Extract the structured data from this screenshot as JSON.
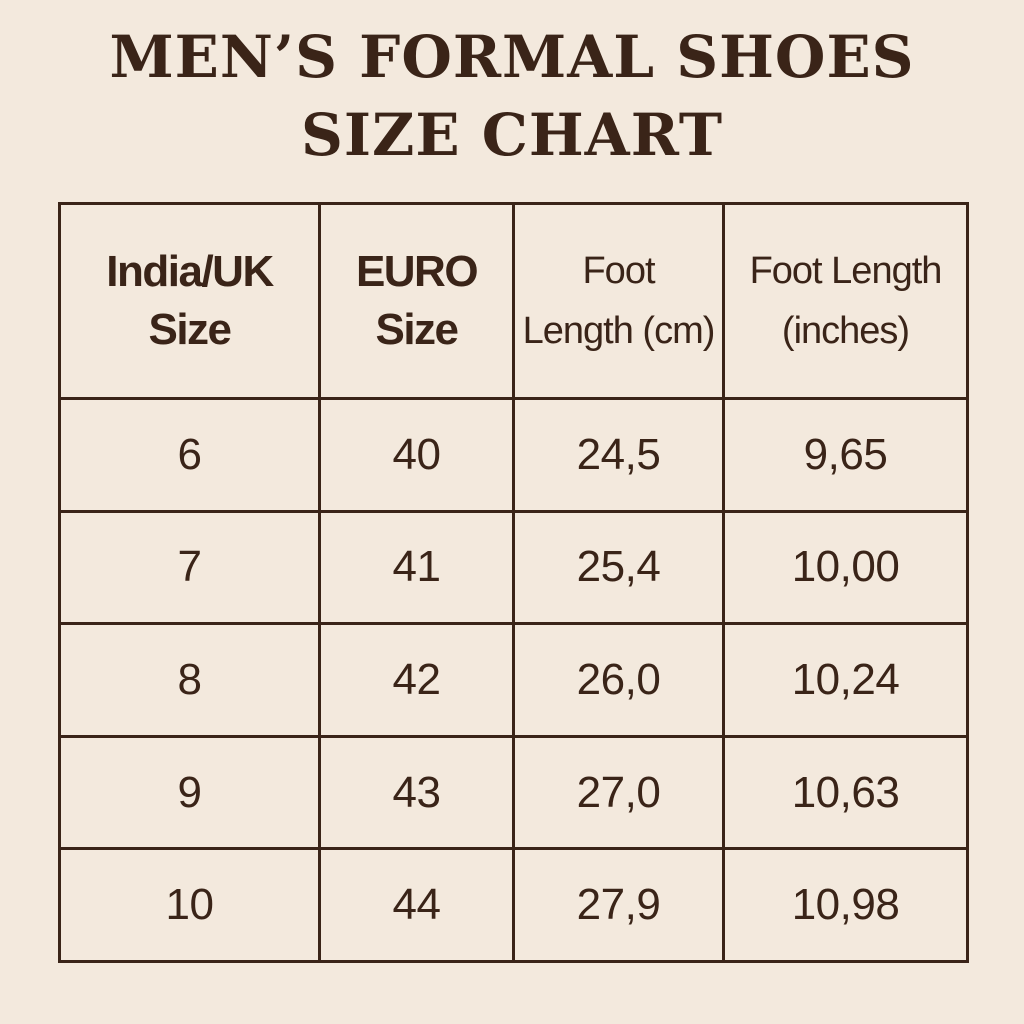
{
  "title": {
    "line1": "MEN’S FORMAL SHOES",
    "line2": "SIZE CHART"
  },
  "columns": [
    {
      "line1": "India/UK",
      "line2": "Size"
    },
    {
      "line1": "EURO",
      "line2": "Size"
    },
    {
      "line1": "Foot",
      "line2": "Length (cm)"
    },
    {
      "line1": "Foot Length",
      "line2": "(inches)"
    }
  ],
  "rows": [
    [
      "6",
      "40",
      "24,5",
      "9,65"
    ],
    [
      "7",
      "41",
      "25,4",
      "10,00"
    ],
    [
      "8",
      "42",
      "26,0",
      "10,24"
    ],
    [
      "9",
      "43",
      "27,0",
      "10,63"
    ],
    [
      "10",
      "44",
      "27,9",
      "10,98"
    ]
  ],
  "colors": {
    "background": "#f3e9dd",
    "text": "#3a2418"
  }
}
